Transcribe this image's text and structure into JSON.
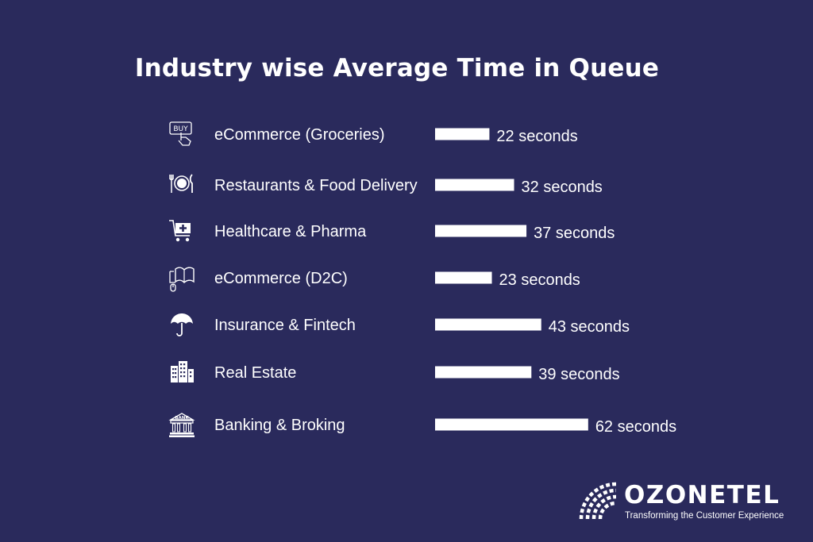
{
  "chart_data": {
    "type": "bar",
    "orientation": "horizontal",
    "title": "Industry wise Average Time in Queue",
    "categories": [
      "eCommerce (Groceries)",
      "Restaurants & Food Delivery",
      "Healthcare & Pharma",
      "eCommerce (D2C)",
      "Insurance & Fintech",
      "Real Estate",
      "Banking & Broking"
    ],
    "values": [
      22,
      32,
      37,
      23,
      43,
      39,
      62
    ],
    "value_labels": [
      "22 seconds",
      "32 seconds",
      "37 seconds",
      "23 seconds",
      "43 seconds",
      "39 seconds",
      "62 seconds"
    ],
    "icons": [
      "buy-hand-icon",
      "plate-cutlery-icon",
      "medical-cart-icon",
      "computer-book-icon",
      "umbrella-icon",
      "building-icon",
      "bank-icon"
    ],
    "bar_color": "#ffffff",
    "background_color": "#2a2a5c",
    "grid": false,
    "legend": "none"
  },
  "logo": {
    "name": "OZONETEL",
    "tagline": "Transforming the Customer Experience"
  }
}
